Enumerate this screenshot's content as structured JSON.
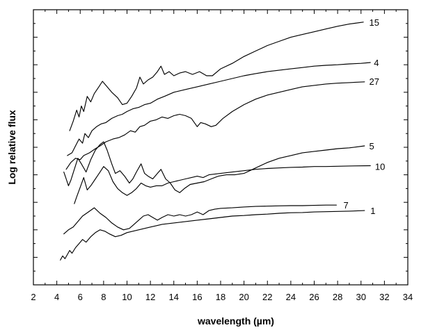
{
  "chart_data": {
    "type": "line",
    "xlabel": "wavelength (µm)",
    "ylabel": "Log relative flux",
    "xlim": [
      2,
      34
    ],
    "ylim": [
      0,
      10
    ],
    "x_ticks": [
      "2",
      "4",
      "6",
      "8",
      "10",
      "12",
      "14",
      "16",
      "18",
      "20",
      "22",
      "24",
      "26",
      "28",
      "30",
      "32",
      "34"
    ],
    "grid": false,
    "y_tick_labels_shown": false,
    "series": [
      {
        "name": "15",
        "label_at": [
          30.7,
          9.55
        ],
        "points": [
          [
            5.1,
            5.6
          ],
          [
            5.4,
            5.95
          ],
          [
            5.7,
            6.35
          ],
          [
            5.9,
            6.1
          ],
          [
            6.1,
            6.5
          ],
          [
            6.3,
            6.3
          ],
          [
            6.6,
            6.85
          ],
          [
            6.9,
            6.65
          ],
          [
            7.2,
            6.95
          ],
          [
            7.6,
            7.2
          ],
          [
            7.9,
            7.4
          ],
          [
            8.3,
            7.2
          ],
          [
            8.7,
            7.0
          ],
          [
            9.2,
            6.8
          ],
          [
            9.6,
            6.55
          ],
          [
            10.0,
            6.6
          ],
          [
            10.4,
            6.85
          ],
          [
            10.8,
            7.15
          ],
          [
            11.1,
            7.55
          ],
          [
            11.4,
            7.3
          ],
          [
            11.8,
            7.45
          ],
          [
            12.2,
            7.55
          ],
          [
            12.6,
            7.75
          ],
          [
            12.9,
            7.95
          ],
          [
            13.2,
            7.65
          ],
          [
            13.6,
            7.75
          ],
          [
            14.0,
            7.6
          ],
          [
            14.5,
            7.7
          ],
          [
            15.0,
            7.75
          ],
          [
            15.6,
            7.65
          ],
          [
            16.2,
            7.75
          ],
          [
            16.8,
            7.6
          ],
          [
            17.3,
            7.6
          ],
          [
            18.0,
            7.85
          ],
          [
            19.0,
            8.05
          ],
          [
            20.0,
            8.3
          ],
          [
            21.0,
            8.5
          ],
          [
            22.0,
            8.7
          ],
          [
            23.0,
            8.85
          ],
          [
            24.0,
            9.0
          ],
          [
            25.0,
            9.1
          ],
          [
            26.0,
            9.2
          ],
          [
            27.0,
            9.3
          ],
          [
            28.0,
            9.4
          ],
          [
            29.0,
            9.48
          ],
          [
            30.2,
            9.55
          ]
        ]
      },
      {
        "name": "4",
        "label_at": [
          31.1,
          8.08
        ],
        "points": [
          [
            4.9,
            4.7
          ],
          [
            5.3,
            4.8
          ],
          [
            5.6,
            5.05
          ],
          [
            5.9,
            5.3
          ],
          [
            6.2,
            5.15
          ],
          [
            6.4,
            5.5
          ],
          [
            6.7,
            5.35
          ],
          [
            7.0,
            5.6
          ],
          [
            7.4,
            5.75
          ],
          [
            7.8,
            5.85
          ],
          [
            8.2,
            5.9
          ],
          [
            8.7,
            6.05
          ],
          [
            9.2,
            6.15
          ],
          [
            9.6,
            6.2
          ],
          [
            10.0,
            6.3
          ],
          [
            10.5,
            6.4
          ],
          [
            11.0,
            6.45
          ],
          [
            11.5,
            6.55
          ],
          [
            12.0,
            6.6
          ],
          [
            12.6,
            6.75
          ],
          [
            13.2,
            6.85
          ],
          [
            14.0,
            7.0
          ],
          [
            15.0,
            7.1
          ],
          [
            16.0,
            7.2
          ],
          [
            17.0,
            7.3
          ],
          [
            18.0,
            7.4
          ],
          [
            19.0,
            7.5
          ],
          [
            20.0,
            7.6
          ],
          [
            21.0,
            7.68
          ],
          [
            22.0,
            7.75
          ],
          [
            23.0,
            7.8
          ],
          [
            24.0,
            7.85
          ],
          [
            25.0,
            7.9
          ],
          [
            26.0,
            7.95
          ],
          [
            27.0,
            7.98
          ],
          [
            28.0,
            8.0
          ],
          [
            29.0,
            8.03
          ],
          [
            30.0,
            8.05
          ],
          [
            30.8,
            8.08
          ]
        ]
      },
      {
        "name": "27",
        "label_at": [
          30.7,
          7.4
        ],
        "points": [
          [
            4.8,
            4.2
          ],
          [
            5.2,
            4.45
          ],
          [
            5.6,
            4.6
          ],
          [
            6.0,
            4.55
          ],
          [
            6.3,
            4.7
          ],
          [
            6.8,
            4.8
          ],
          [
            7.3,
            4.95
          ],
          [
            7.7,
            5.05
          ],
          [
            8.2,
            5.2
          ],
          [
            8.8,
            5.3
          ],
          [
            9.3,
            5.35
          ],
          [
            9.8,
            5.45
          ],
          [
            10.3,
            5.6
          ],
          [
            10.7,
            5.55
          ],
          [
            11.1,
            5.75
          ],
          [
            11.5,
            5.8
          ],
          [
            12.0,
            5.95
          ],
          [
            12.5,
            6.0
          ],
          [
            13.0,
            6.1
          ],
          [
            13.5,
            6.05
          ],
          [
            14.0,
            6.15
          ],
          [
            14.5,
            6.2
          ],
          [
            15.0,
            6.15
          ],
          [
            15.5,
            6.05
          ],
          [
            16.0,
            5.75
          ],
          [
            16.3,
            5.9
          ],
          [
            16.7,
            5.85
          ],
          [
            17.2,
            5.75
          ],
          [
            17.6,
            5.8
          ],
          [
            18.2,
            6.05
          ],
          [
            19.0,
            6.3
          ],
          [
            20.0,
            6.55
          ],
          [
            21.0,
            6.75
          ],
          [
            22.0,
            6.9
          ],
          [
            23.0,
            7.0
          ],
          [
            24.0,
            7.1
          ],
          [
            25.0,
            7.2
          ],
          [
            26.0,
            7.25
          ],
          [
            27.0,
            7.3
          ],
          [
            28.0,
            7.33
          ],
          [
            29.0,
            7.35
          ],
          [
            30.3,
            7.38
          ]
        ]
      },
      {
        "name": "5",
        "label_at": [
          30.7,
          5.05
        ],
        "points": [
          [
            4.6,
            4.1
          ],
          [
            4.8,
            3.85
          ],
          [
            5.0,
            3.6
          ],
          [
            5.2,
            3.8
          ],
          [
            5.5,
            4.2
          ],
          [
            5.8,
            4.6
          ],
          [
            6.1,
            4.4
          ],
          [
            6.5,
            4.1
          ],
          [
            6.9,
            4.55
          ],
          [
            7.3,
            4.9
          ],
          [
            7.7,
            5.1
          ],
          [
            8.0,
            5.2
          ],
          [
            8.3,
            4.9
          ],
          [
            8.7,
            4.4
          ],
          [
            9.0,
            4.05
          ],
          [
            9.4,
            4.15
          ],
          [
            9.8,
            3.95
          ],
          [
            10.2,
            3.7
          ],
          [
            10.5,
            3.85
          ],
          [
            10.8,
            4.1
          ],
          [
            11.2,
            4.4
          ],
          [
            11.5,
            4.05
          ],
          [
            11.8,
            3.95
          ],
          [
            12.2,
            3.85
          ],
          [
            12.6,
            4.05
          ],
          [
            12.9,
            4.2
          ],
          [
            13.3,
            3.85
          ],
          [
            13.7,
            3.7
          ],
          [
            14.1,
            3.45
          ],
          [
            14.5,
            3.35
          ],
          [
            14.9,
            3.5
          ],
          [
            15.4,
            3.65
          ],
          [
            16.0,
            3.7
          ],
          [
            16.6,
            3.75
          ],
          [
            17.2,
            3.85
          ],
          [
            17.8,
            3.95
          ],
          [
            18.5,
            4.0
          ],
          [
            19.2,
            4.0
          ],
          [
            20.0,
            4.05
          ],
          [
            21.0,
            4.25
          ],
          [
            22.0,
            4.45
          ],
          [
            23.0,
            4.6
          ],
          [
            24.0,
            4.7
          ],
          [
            25.0,
            4.8
          ],
          [
            26.0,
            4.85
          ],
          [
            27.0,
            4.9
          ],
          [
            28.0,
            4.95
          ],
          [
            29.0,
            4.98
          ],
          [
            30.3,
            5.05
          ]
        ]
      },
      {
        "name": "10",
        "label_at": [
          31.2,
          4.3
        ],
        "points": [
          [
            5.5,
            2.95
          ],
          [
            5.7,
            3.2
          ],
          [
            6.0,
            3.55
          ],
          [
            6.3,
            3.9
          ],
          [
            6.6,
            3.45
          ],
          [
            6.9,
            3.6
          ],
          [
            7.3,
            3.85
          ],
          [
            7.7,
            4.1
          ],
          [
            8.0,
            4.3
          ],
          [
            8.4,
            4.15
          ],
          [
            8.8,
            3.75
          ],
          [
            9.2,
            3.5
          ],
          [
            9.6,
            3.35
          ],
          [
            10.0,
            3.25
          ],
          [
            10.4,
            3.35
          ],
          [
            10.8,
            3.5
          ],
          [
            11.2,
            3.7
          ],
          [
            11.6,
            3.6
          ],
          [
            12.0,
            3.55
          ],
          [
            12.5,
            3.6
          ],
          [
            13.0,
            3.6
          ],
          [
            13.5,
            3.7
          ],
          [
            14.0,
            3.75
          ],
          [
            14.5,
            3.8
          ],
          [
            15.0,
            3.85
          ],
          [
            15.5,
            3.9
          ],
          [
            16.0,
            3.95
          ],
          [
            16.5,
            3.9
          ],
          [
            17.0,
            4.0
          ],
          [
            18.0,
            4.05
          ],
          [
            19.0,
            4.1
          ],
          [
            20.0,
            4.15
          ],
          [
            21.0,
            4.2
          ],
          [
            22.0,
            4.23
          ],
          [
            23.0,
            4.25
          ],
          [
            24.0,
            4.27
          ],
          [
            25.0,
            4.28
          ],
          [
            26.0,
            4.3
          ],
          [
            27.0,
            4.3
          ],
          [
            28.0,
            4.31
          ],
          [
            29.0,
            4.32
          ],
          [
            30.8,
            4.33
          ]
        ]
      },
      {
        "name": "7",
        "label_at": [
          28.5,
          2.9
        ],
        "points": [
          [
            4.6,
            1.85
          ],
          [
            5.0,
            2.0
          ],
          [
            5.4,
            2.1
          ],
          [
            5.8,
            2.3
          ],
          [
            6.2,
            2.5
          ],
          [
            6.7,
            2.65
          ],
          [
            7.2,
            2.8
          ],
          [
            7.7,
            2.6
          ],
          [
            8.2,
            2.45
          ],
          [
            8.7,
            2.25
          ],
          [
            9.2,
            2.1
          ],
          [
            9.7,
            2.0
          ],
          [
            10.2,
            2.05
          ],
          [
            10.6,
            2.2
          ],
          [
            11.0,
            2.35
          ],
          [
            11.4,
            2.5
          ],
          [
            11.8,
            2.55
          ],
          [
            12.2,
            2.45
          ],
          [
            12.6,
            2.35
          ],
          [
            13.0,
            2.45
          ],
          [
            13.5,
            2.55
          ],
          [
            14.0,
            2.5
          ],
          [
            14.5,
            2.55
          ],
          [
            15.0,
            2.5
          ],
          [
            15.5,
            2.55
          ],
          [
            16.0,
            2.65
          ],
          [
            16.5,
            2.55
          ],
          [
            17.0,
            2.7
          ],
          [
            17.5,
            2.75
          ],
          [
            18.0,
            2.78
          ],
          [
            19.0,
            2.8
          ],
          [
            20.0,
            2.83
          ],
          [
            21.0,
            2.85
          ],
          [
            22.0,
            2.86
          ],
          [
            23.0,
            2.87
          ],
          [
            24.0,
            2.88
          ],
          [
            25.0,
            2.88
          ],
          [
            26.0,
            2.89
          ],
          [
            27.0,
            2.9
          ],
          [
            27.9,
            2.9
          ]
        ]
      },
      {
        "name": "1",
        "label_at": [
          30.8,
          2.7
        ],
        "points": [
          [
            4.3,
            0.9
          ],
          [
            4.5,
            1.05
          ],
          [
            4.7,
            0.95
          ],
          [
            4.9,
            1.1
          ],
          [
            5.1,
            1.25
          ],
          [
            5.3,
            1.15
          ],
          [
            5.6,
            1.35
          ],
          [
            5.9,
            1.5
          ],
          [
            6.2,
            1.65
          ],
          [
            6.5,
            1.55
          ],
          [
            6.9,
            1.75
          ],
          [
            7.3,
            1.9
          ],
          [
            7.7,
            2.0
          ],
          [
            8.1,
            1.95
          ],
          [
            8.5,
            1.85
          ],
          [
            9.0,
            1.75
          ],
          [
            9.5,
            1.8
          ],
          [
            10.0,
            1.9
          ],
          [
            10.5,
            1.95
          ],
          [
            11.0,
            2.0
          ],
          [
            11.5,
            2.05
          ],
          [
            12.0,
            2.1
          ],
          [
            12.5,
            2.15
          ],
          [
            13.0,
            2.2
          ],
          [
            14.0,
            2.25
          ],
          [
            15.0,
            2.3
          ],
          [
            16.0,
            2.35
          ],
          [
            17.0,
            2.4
          ],
          [
            18.0,
            2.45
          ],
          [
            19.0,
            2.5
          ],
          [
            20.0,
            2.52
          ],
          [
            21.0,
            2.55
          ],
          [
            22.0,
            2.57
          ],
          [
            23.0,
            2.6
          ],
          [
            24.0,
            2.62
          ],
          [
            25.0,
            2.63
          ],
          [
            26.0,
            2.65
          ],
          [
            27.0,
            2.66
          ],
          [
            28.0,
            2.67
          ],
          [
            29.0,
            2.68
          ],
          [
            30.3,
            2.7
          ]
        ]
      }
    ]
  }
}
